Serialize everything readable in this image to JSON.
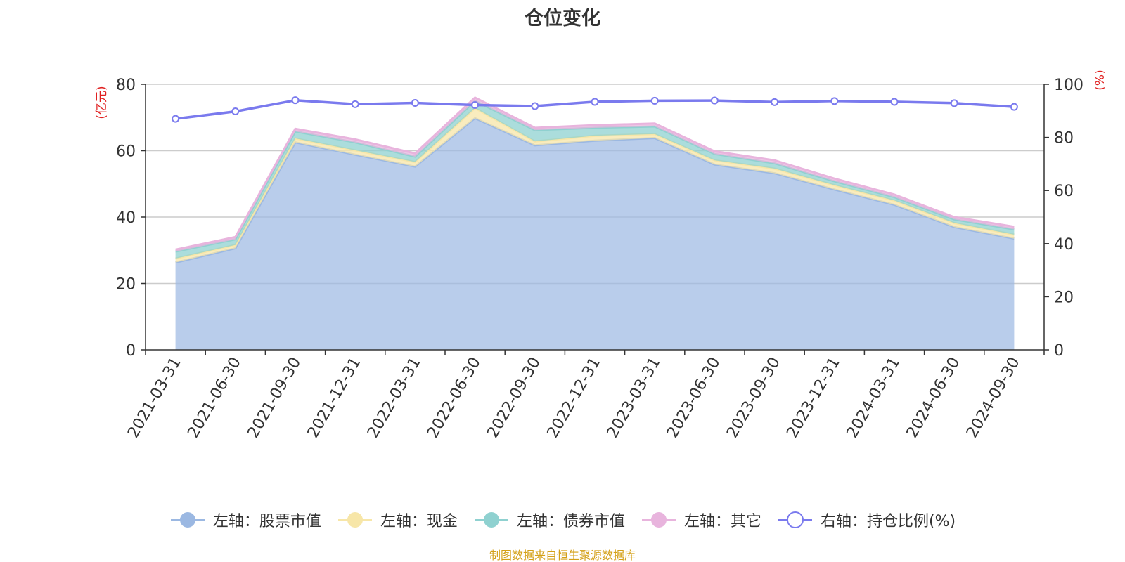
{
  "title": "仓位变化",
  "source_note": "制图数据来自恒生聚源数据库",
  "colors": {
    "stock": "#9bb8e2",
    "cash": "#f7e6a8",
    "bond": "#8fd1d0",
    "other": "#e8b4dd",
    "ratio": "#7a7aee",
    "axis_unit": "#e02020",
    "source": "#d4a017",
    "grid": "#cccccc",
    "axis_text": "#333333"
  },
  "chart_data": {
    "type": "area",
    "title": "仓位变化",
    "x": [
      "2021-03-31",
      "2021-06-30",
      "2021-09-30",
      "2021-12-31",
      "2022-03-31",
      "2022-06-30",
      "2022-09-30",
      "2022-12-31",
      "2023-03-31",
      "2023-06-30",
      "2023-09-30",
      "2023-12-31",
      "2024-03-31",
      "2024-06-30",
      "2024-09-30"
    ],
    "y_left": {
      "label": "(亿元)",
      "range": [
        0,
        80
      ],
      "ticks": [
        0,
        20,
        40,
        60,
        80
      ]
    },
    "y_right": {
      "label": "(%)",
      "range": [
        0,
        100
      ],
      "ticks": [
        0,
        20,
        40,
        60,
        80,
        100
      ]
    },
    "grid": true,
    "legend_position": "bottom",
    "series": [
      {
        "name": "左轴：股票市值",
        "axis": "left",
        "stack": true,
        "icon": "filled-circle",
        "values": [
          26.3,
          30.6,
          62.5,
          58.8,
          55.2,
          69.8,
          61.6,
          63.0,
          63.8,
          55.8,
          53.2,
          48.3,
          43.7,
          37.0,
          33.5
        ]
      },
      {
        "name": "左轴：现金",
        "axis": "left",
        "stack": true,
        "icon": "filled-circle",
        "values": [
          1.2,
          1.0,
          1.2,
          1.3,
          1.4,
          3.0,
          1.2,
          1.5,
          1.2,
          1.3,
          1.4,
          1.3,
          1.3,
          1.2,
          1.2
        ]
      },
      {
        "name": "左轴：债券市值",
        "axis": "left",
        "stack": true,
        "icon": "filled-circle",
        "values": [
          2.1,
          1.7,
          2.1,
          2.4,
          1.6,
          2.2,
          3.4,
          2.4,
          2.3,
          1.9,
          1.6,
          1.2,
          1.0,
          1.1,
          1.6
        ]
      },
      {
        "name": "左轴：其它",
        "axis": "left",
        "stack": true,
        "icon": "filled-circle",
        "values": [
          0.6,
          0.7,
          0.8,
          0.9,
          1.0,
          1.0,
          0.7,
          0.8,
          0.9,
          0.8,
          0.9,
          0.8,
          0.8,
          0.7,
          0.8
        ]
      },
      {
        "name": "右轴：持仓比例(%)",
        "axis": "right",
        "type": "line",
        "icon": "hollow-circle",
        "values": [
          87.0,
          89.8,
          94.0,
          92.5,
          93.0,
          92.2,
          91.8,
          93.4,
          93.8,
          93.9,
          93.3,
          93.7,
          93.4,
          92.9,
          91.5
        ]
      }
    ]
  }
}
